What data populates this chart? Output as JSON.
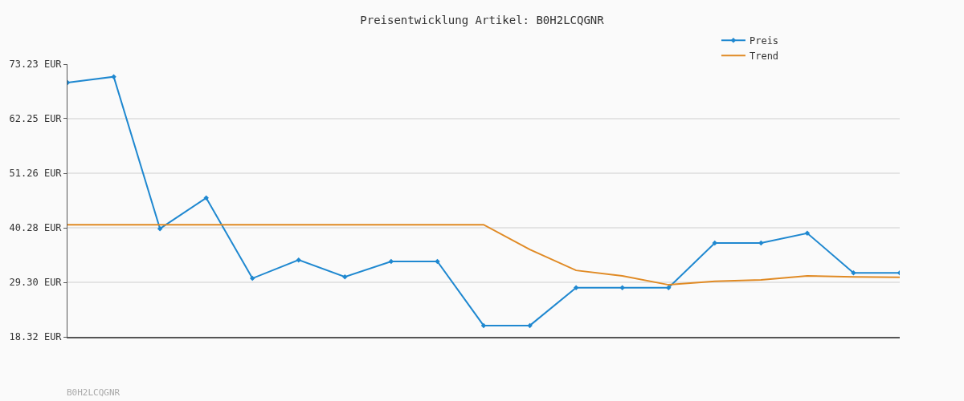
{
  "chart_data": {
    "type": "line",
    "title": "Preisentwicklung Artikel: B0H2LCQGNR",
    "categories": [
      null,
      null,
      null,
      null,
      null,
      null,
      null,
      null,
      null,
      null,
      null,
      null,
      null,
      null,
      null,
      null,
      null,
      null,
      null
    ],
    "series": [
      {
        "name": "Preis",
        "color": "#1f88d0",
        "marker": "diamond",
        "values": [
          69.5,
          70.7,
          40.1,
          46.3,
          30.1,
          33.8,
          30.4,
          33.5,
          33.5,
          20.6,
          20.6,
          28.2,
          28.2,
          28.2,
          37.2,
          37.2,
          39.2,
          31.2,
          31.2
        ]
      },
      {
        "name": "Trend",
        "color": "#e08a24",
        "marker": "none",
        "values": [
          40.9,
          40.9,
          40.9,
          40.9,
          40.9,
          40.9,
          40.9,
          40.9,
          40.9,
          40.9,
          35.9,
          31.7,
          30.6,
          28.8,
          29.5,
          29.8,
          30.6,
          30.4,
          30.3
        ]
      }
    ],
    "ylim": [
      18.32,
      73.23
    ],
    "yticks": [
      {
        "value": 18.32,
        "label": "18.32 EUR"
      },
      {
        "value": 29.3,
        "label": "29.30 EUR"
      },
      {
        "value": 40.28,
        "label": "40.28 EUR"
      },
      {
        "value": 51.26,
        "label": "51.26 EUR"
      },
      {
        "value": 62.25,
        "label": "62.25 EUR"
      },
      {
        "value": 73.23,
        "label": "73.23 EUR"
      }
    ],
    "grid": "y",
    "legend": "top right",
    "tick_labels": "y",
    "annotations": [
      "B0H2LCQGNR"
    ]
  }
}
